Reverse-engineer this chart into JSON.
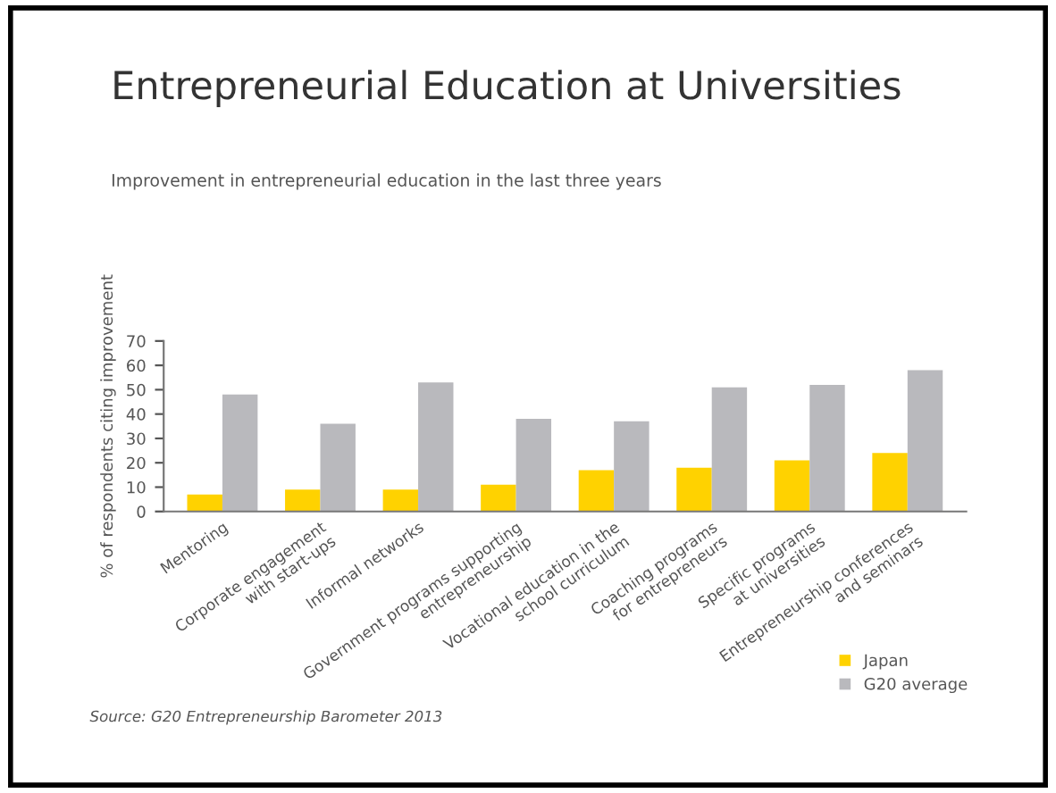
{
  "chart_data": {
    "type": "bar",
    "title": "Entrepreneurial Education at Universities",
    "subtitle": "Improvement in entrepreneurial education in the last three years",
    "ylabel": "% of respondents citing improvement",
    "categories": [
      "Mentoring",
      "Corporate engagement\nwith start-ups",
      "Informal networks",
      "Government programs supporting\nentrepreneurship",
      "Vocational education in the\nschool curriculum",
      "Coaching programs\nfor entrepreneurs",
      "Specific programs\nat universities",
      "Entrepreneurship conferences\nand seminars"
    ],
    "series": [
      {
        "name": "Japan",
        "color": "#ffd200",
        "values": [
          7,
          9,
          9,
          11,
          17,
          18,
          21,
          24
        ]
      },
      {
        "name": "G20 average",
        "color": "#b9b9bd",
        "values": [
          48,
          36,
          53,
          38,
          37,
          51,
          52,
          58
        ]
      }
    ],
    "ylim": [
      0,
      70
    ],
    "yticks": [
      0,
      10,
      20,
      30,
      40,
      50,
      60,
      70
    ],
    "grid": false,
    "legend": "bottom right",
    "annotations": [
      "Source: G20 Entrepreneurship Barometer 2013"
    ]
  }
}
